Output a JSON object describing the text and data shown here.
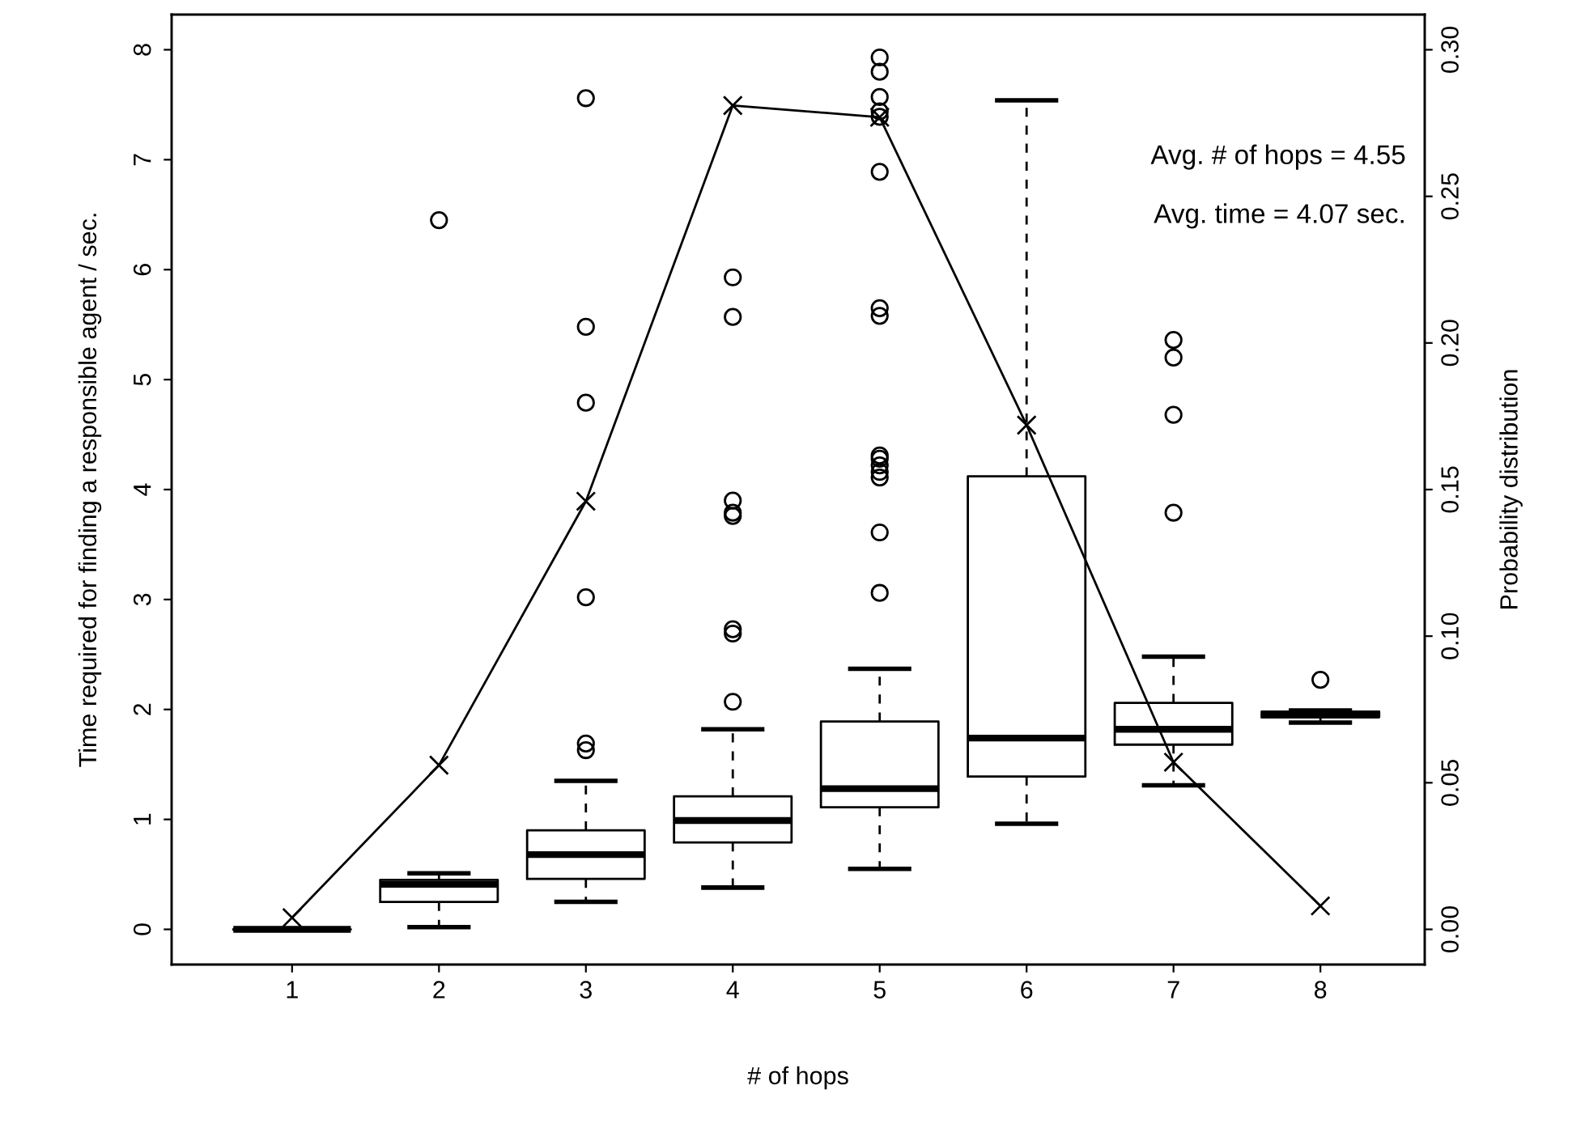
{
  "chart_data": {
    "type": "box",
    "xlabel": "# of hops",
    "ylabel": "Time required for finding a responsible agent / sec.",
    "y2label": "Probability distribution",
    "categories": [
      "1",
      "2",
      "3",
      "4",
      "5",
      "6",
      "7",
      "8"
    ],
    "ylim": [
      -0.32,
      8.32
    ],
    "yticks": [
      0,
      1,
      2,
      3,
      4,
      5,
      6,
      7,
      8
    ],
    "y2lim": [
      -0.012,
      0.312
    ],
    "y2ticks": [
      {
        "value": 0,
        "label": "0.00"
      },
      {
        "value": 0.05,
        "label": "0.05"
      },
      {
        "value": 0.1,
        "label": "0.10"
      },
      {
        "value": 0.15,
        "label": "0.15"
      },
      {
        "value": 0.2,
        "label": "0.20"
      },
      {
        "value": 0.25,
        "label": "0.25"
      },
      {
        "value": 0.3,
        "label": "0.30"
      }
    ],
    "grid": false,
    "boxes": [
      {
        "low": 0,
        "q1": 0,
        "median": 0,
        "q3": 0,
        "high": 0
      },
      {
        "low": 0.02,
        "q1": 0.25,
        "median": 0.41,
        "q3": 0.45,
        "high": 0.51,
        "outliers": [
          6.45
        ]
      },
      {
        "low": 0.25,
        "q1": 0.46,
        "median": 0.68,
        "q3": 0.9,
        "high": 1.35,
        "outliers": [
          1.63,
          1.69,
          3.02,
          4.79,
          5.48,
          7.56
        ]
      },
      {
        "low": 0.38,
        "q1": 0.79,
        "median": 0.99,
        "q3": 1.21,
        "high": 1.82,
        "outliers": [
          2.07,
          2.69,
          2.73,
          3.76,
          3.79,
          3.9,
          5.57,
          5.93
        ]
      },
      {
        "low": 0.55,
        "q1": 1.11,
        "median": 1.28,
        "q3": 1.89,
        "high": 2.37,
        "outliers": [
          3.06,
          3.61,
          4.11,
          4.16,
          4.22,
          4.28,
          4.31,
          5.58,
          5.65,
          6.89,
          7.39,
          7.44,
          7.57,
          7.8,
          7.93
        ]
      },
      {
        "low": 0.96,
        "q1": 1.39,
        "median": 1.74,
        "q3": 4.12,
        "high": 7.54
      },
      {
        "low": 1.31,
        "q1": 1.68,
        "median": 1.82,
        "q3": 2.06,
        "high": 2.48,
        "outliers": [
          3.79,
          4.68,
          5.2,
          5.36
        ]
      },
      {
        "low": 1.88,
        "q1": 1.93,
        "median": 1.95,
        "q3": 1.98,
        "high": 1.99,
        "outliers": [
          2.27
        ]
      }
    ],
    "series": [
      {
        "type": "line",
        "axis": "y2",
        "color": "#000000",
        "marker": "cross",
        "line_style": "solid",
        "values": [
          0.004,
          0.056,
          0.146,
          0.281,
          0.277,
          0.172,
          0.057,
          0.008
        ]
      }
    ],
    "annotations": [
      "Avg. # of hops = 4.55",
      "Avg. time = 4.07 sec."
    ]
  }
}
